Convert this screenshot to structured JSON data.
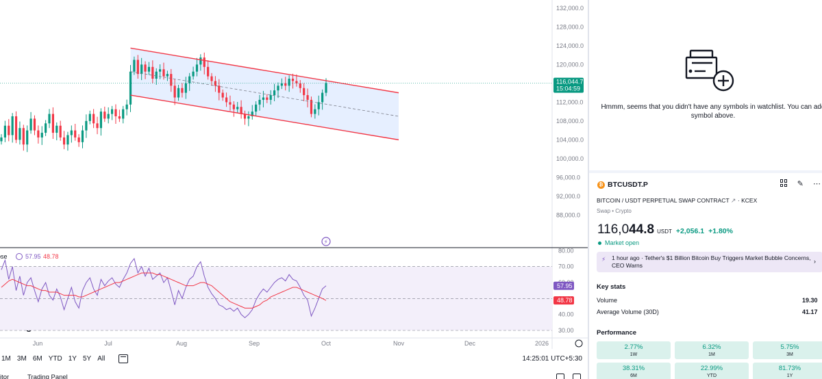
{
  "chart_data": {
    "type": "candlestick",
    "symbol": "BTCUSDT.P",
    "x_tick_labels": [
      "Jun",
      "Jul",
      "Aug",
      "Sep",
      "Oct",
      "Nov",
      "Dec",
      "2026"
    ],
    "y_tick_labels": [
      "132,000.0",
      "128,000.0",
      "124,000.0",
      "120,000.0",
      "116,000.0",
      "112,000.0",
      "108,000.0",
      "104,000.0",
      "100,000.0",
      "96,000.0",
      "92,000.0",
      "88,000.0"
    ],
    "ylim": [
      85000,
      133000
    ],
    "closes": [
      104500,
      107000,
      105000,
      109000,
      104000,
      106500,
      103000,
      106000,
      108500,
      106000,
      104500,
      105500,
      107500,
      109500,
      105500,
      107000,
      104500,
      103000,
      105000,
      106000,
      104500,
      103500,
      106000,
      108000,
      109500,
      107500,
      106500,
      110000,
      108500,
      109500,
      110500,
      109000,
      108500,
      110500,
      111500,
      118500,
      121000,
      118000,
      120000,
      118500,
      119500,
      117000,
      118500,
      119000,
      117500,
      118000,
      115500,
      113000,
      115000,
      114000,
      116000,
      117500,
      118500,
      120000,
      121500,
      119500,
      117500,
      116500,
      115500,
      114000,
      113000,
      112000,
      111500,
      110500,
      111000,
      109500,
      108500,
      109000,
      110000,
      111500,
      112500,
      113000,
      112500,
      113500,
      114500,
      115500,
      116000,
      115500,
      117000,
      116500,
      116000,
      115000,
      113500,
      112500,
      109500,
      110500,
      112000,
      114000,
      116044.7
    ],
    "current_price": {
      "label": "116,044.7",
      "countdown": "15:04:59",
      "value": 116044.7
    },
    "channel": {
      "upper_start": 123500,
      "upper_end": 114000,
      "lower_start": 113500,
      "lower_end": 104000
    },
    "rsi": {
      "label": "ose",
      "value": "57.95",
      "ma_value": "48.78",
      "y_tick_labels": [
        "80.00",
        "70.00",
        "60.00",
        "50.00",
        "40.00",
        "30.00"
      ],
      "ylim": [
        27,
        81
      ],
      "values": [
        68,
        74,
        62,
        70,
        55,
        64,
        52,
        60,
        63,
        55,
        48,
        56,
        60,
        52,
        49,
        56,
        51,
        43,
        50,
        57,
        48,
        44,
        55,
        60,
        63,
        56,
        52,
        62,
        58,
        61,
        63,
        59,
        57,
        62,
        66,
        72,
        75,
        66,
        70,
        64,
        69,
        62,
        64,
        66,
        60,
        63,
        55,
        46,
        55,
        50,
        57,
        62,
        64,
        70,
        73,
        64,
        57,
        53,
        50,
        46,
        45,
        43,
        44,
        42,
        44,
        40,
        38,
        40,
        43,
        49,
        53,
        56,
        54,
        57,
        60,
        62,
        63,
        61,
        65,
        62,
        61,
        57,
        52,
        49,
        39,
        44,
        50,
        56,
        57.95
      ],
      "ma": [
        57,
        59,
        61,
        62,
        61,
        60,
        59,
        58,
        58,
        57,
        56,
        55,
        55,
        54,
        54,
        54,
        53,
        52,
        52,
        52,
        52,
        51,
        51,
        52,
        53,
        54,
        55,
        56,
        57,
        58,
        59,
        60,
        60,
        61,
        62,
        63,
        64,
        65,
        66,
        66,
        66,
        66,
        65,
        65,
        64,
        63,
        62,
        61,
        60,
        59,
        58,
        58,
        58,
        59,
        60,
        60,
        59,
        58,
        56,
        54,
        52,
        50,
        48,
        47,
        46,
        45,
        44,
        44,
        44,
        45,
        46,
        48,
        49,
        51,
        52,
        53,
        54,
        55,
        56,
        57,
        57,
        56,
        55,
        54,
        53,
        52,
        51,
        50,
        48.78
      ]
    }
  },
  "watermark": "TradingView",
  "toolbar": {
    "timeframes": [
      "1M",
      "3M",
      "6M",
      "YTD",
      "1Y",
      "5Y",
      "All"
    ],
    "time": "14:25:01 UTC+5:30"
  },
  "bottom_tabs": {
    "left": "itor",
    "right": "Trading Panel"
  },
  "watchlist": {
    "empty_message": "Hmmm, seems that you didn't have any symbols in watchlist. You can add symbol above."
  },
  "symbol_panel": {
    "symbol": "BTCUSDT.P",
    "description": "BITCOIN / USDT PERPETUAL SWAP CONTRACT",
    "exchange": "· KCEX",
    "category": "Swap • Crypto",
    "price_main": "116,0",
    "price_bold": "44.8",
    "currency": "USDT",
    "change": "+2,056.1",
    "change_pct": "+1.80%",
    "market_status": "Market open",
    "news": {
      "time": "1 hour ago",
      "headline": "Tether's $1 Billion Bitcoin Buy Triggers Market Bubble Concerns, CEO Warns"
    },
    "key_stats_title": "Key stats",
    "stats": [
      {
        "label": "Volume",
        "value": "19.30"
      },
      {
        "label": "Average Volume (30D)",
        "value": "41.17"
      }
    ],
    "performance_title": "Performance",
    "performance": [
      {
        "value": "2.77%",
        "period": "1W"
      },
      {
        "value": "6.32%",
        "period": "1M"
      },
      {
        "value": "5.75%",
        "period": "3M"
      },
      {
        "value": "38.31%",
        "period": "6M"
      },
      {
        "value": "22.99%",
        "period": "YTD"
      },
      {
        "value": "81.73%",
        "period": "1Y"
      }
    ]
  },
  "colors": {
    "up": "#089981",
    "down": "#f23645",
    "channel": "#f23645",
    "channel_fill": "#dbe8ff",
    "rsi_line": "#7e57c2",
    "rsi_bg": "#f3effa"
  }
}
